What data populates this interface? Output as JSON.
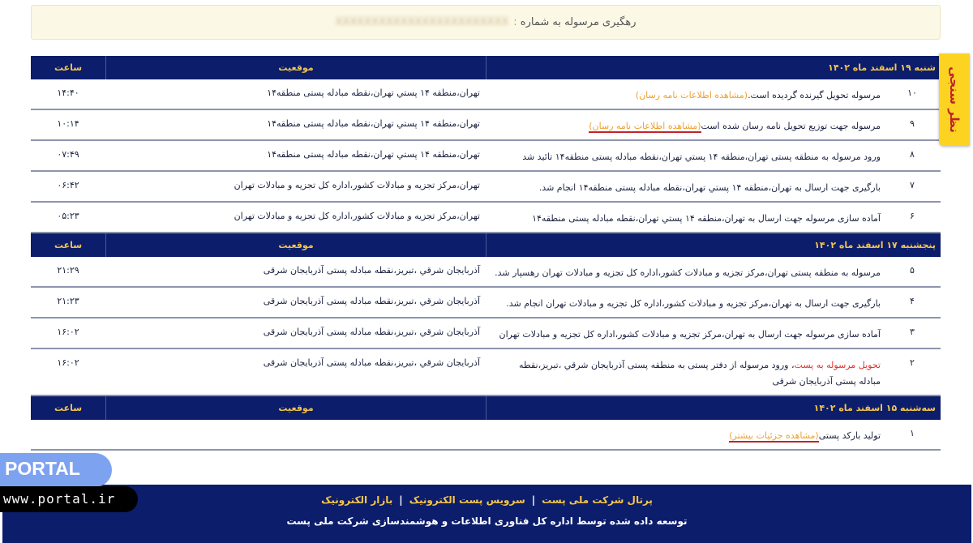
{
  "header": {
    "title": "رهگیری مرسوله به شماره",
    "colon": ":",
    "number": "XXXXXXXXXXXXXXXXXXXXXXXX"
  },
  "survey": "نظر سنجی",
  "columns": {
    "location": "موقعیت",
    "time": "ساعت"
  },
  "groups": [
    {
      "date": "شنبه ۱۹ اسفند ماه ۱۴۰۲",
      "rows": [
        {
          "n": "۱۰",
          "pre": "",
          "desc": "مرسوله تحویل گیرنده گردیده است.",
          "link": "(مشاهده اطلاعات نامه رسان)",
          "underline": false,
          "loc": "تهران،منطقه ۱۴ پستي تهران،نقطه مبادله پستی منطقه۱۴",
          "time": "۱۴:۴۰"
        },
        {
          "n": "۹",
          "pre": "",
          "desc": "مرسوله جهت توزیع تحویل نامه رسان شده است",
          "link": "(مشاهده اطلاعات نامه رسان)",
          "underline": true,
          "loc": "تهران،منطقه ۱۴ پستي تهران،نقطه مبادله پستی منطقه۱۴",
          "time": "۱۰:۱۴"
        },
        {
          "n": "۸",
          "pre": "",
          "desc": "ورود مرسوله به منطقه پستی تهران،منطقه ۱۴ پستي تهران،نقطه مبادله پستی منطقه۱۴ تائید شد",
          "link": "",
          "underline": false,
          "loc": "تهران،منطقه ۱۴ پستي تهران،نقطه مبادله پستی منطقه۱۴",
          "time": "۰۷:۴۹"
        },
        {
          "n": "۷",
          "pre": "",
          "desc": "بارگیری جهت ارسال به تهران،منطقه ۱۴ پستي تهران،نقطه مبادله پستی منطقه۱۴ انجام شد.",
          "link": "",
          "underline": false,
          "loc": "تهران،مرکز تجزیه و مبادلات کشور،اداره کل تجزیه و مبادلات تهران",
          "time": "۰۶:۴۲"
        },
        {
          "n": "۶",
          "pre": "",
          "desc": "آماده سازی مرسوله جهت ارسال به تهران،منطقه ۱۴ پستي تهران،نقطه مبادله پستی منطقه۱۴",
          "link": "",
          "underline": false,
          "loc": "تهران،مرکز تجزیه و مبادلات کشور،اداره کل تجزیه و مبادلات تهران",
          "time": "۰۵:۲۳"
        }
      ]
    },
    {
      "date": "پنجشنبه ۱۷ اسفند ماه ۱۴۰۲",
      "rows": [
        {
          "n": "۵",
          "pre": "",
          "desc": "مرسوله به منطقه پستی تهران،مرکز تجزیه و مبادلات کشور،اداره کل تجزیه و مبادلات تهران رهسپار شد.",
          "link": "",
          "underline": false,
          "loc": "آذربایجان شرقي ،تبریز،نقطه مبادله پستی آذربایجان شرقی",
          "time": "۲۱:۲۹"
        },
        {
          "n": "۴",
          "pre": "",
          "desc": "بارگیری جهت ارسال به تهران،مرکز تجزیه و مبادلات کشور،اداره کل تجزیه و مبادلات تهران انجام شد.",
          "link": "",
          "underline": false,
          "loc": "آذربایجان شرقي ،تبریز،نقطه مبادله پستی آذربایجان شرقی",
          "time": "۲۱:۲۳"
        },
        {
          "n": "۳",
          "pre": "",
          "desc": "آماده سازی مرسوله جهت ارسال به تهران،مرکز تجزیه و مبادلات کشور،اداره کل تجزیه و مبادلات تهران",
          "link": "",
          "underline": false,
          "loc": "آذربایجان شرقي ،تبریز،نقطه مبادله پستی آذربایجان شرقی",
          "time": "۱۶:۰۲"
        },
        {
          "n": "۲",
          "pre": "تحویل مرسوله به پست",
          "desc": "، ورود مرسوله از دفتر پستی به منطقه پستی آذربایجان شرقي ،تبریز،نقطه مبادله پستی آذربایجان شرقی",
          "link": "",
          "underline": false,
          "loc": "آذربایجان شرقي ،تبریز،نقطه مبادله پستی آذربایجان شرقی",
          "time": "۱۶:۰۲"
        }
      ]
    },
    {
      "date": "سه‌شنبه ۱۵ اسفند ماه ۱۴۰۲",
      "rows": [
        {
          "n": "۱",
          "pre": "",
          "desc": "تولید بارکد پستی",
          "link": "(مشاهده جزئیات بیشتر)",
          "underline": true,
          "loc": "",
          "time": ""
        }
      ]
    }
  ],
  "footer": {
    "links": [
      "پرتال شرکت ملی پست",
      "سرویس پست الکترونیک",
      "بازار الکترونیک"
    ],
    "note": "توسعه داده شده توسط اداره کل فناوری اطلاعات و هوشمندسازی شرکت ملی پست"
  },
  "watermark": {
    "brand": "PORTAL",
    "url": "www.portal.ir"
  }
}
